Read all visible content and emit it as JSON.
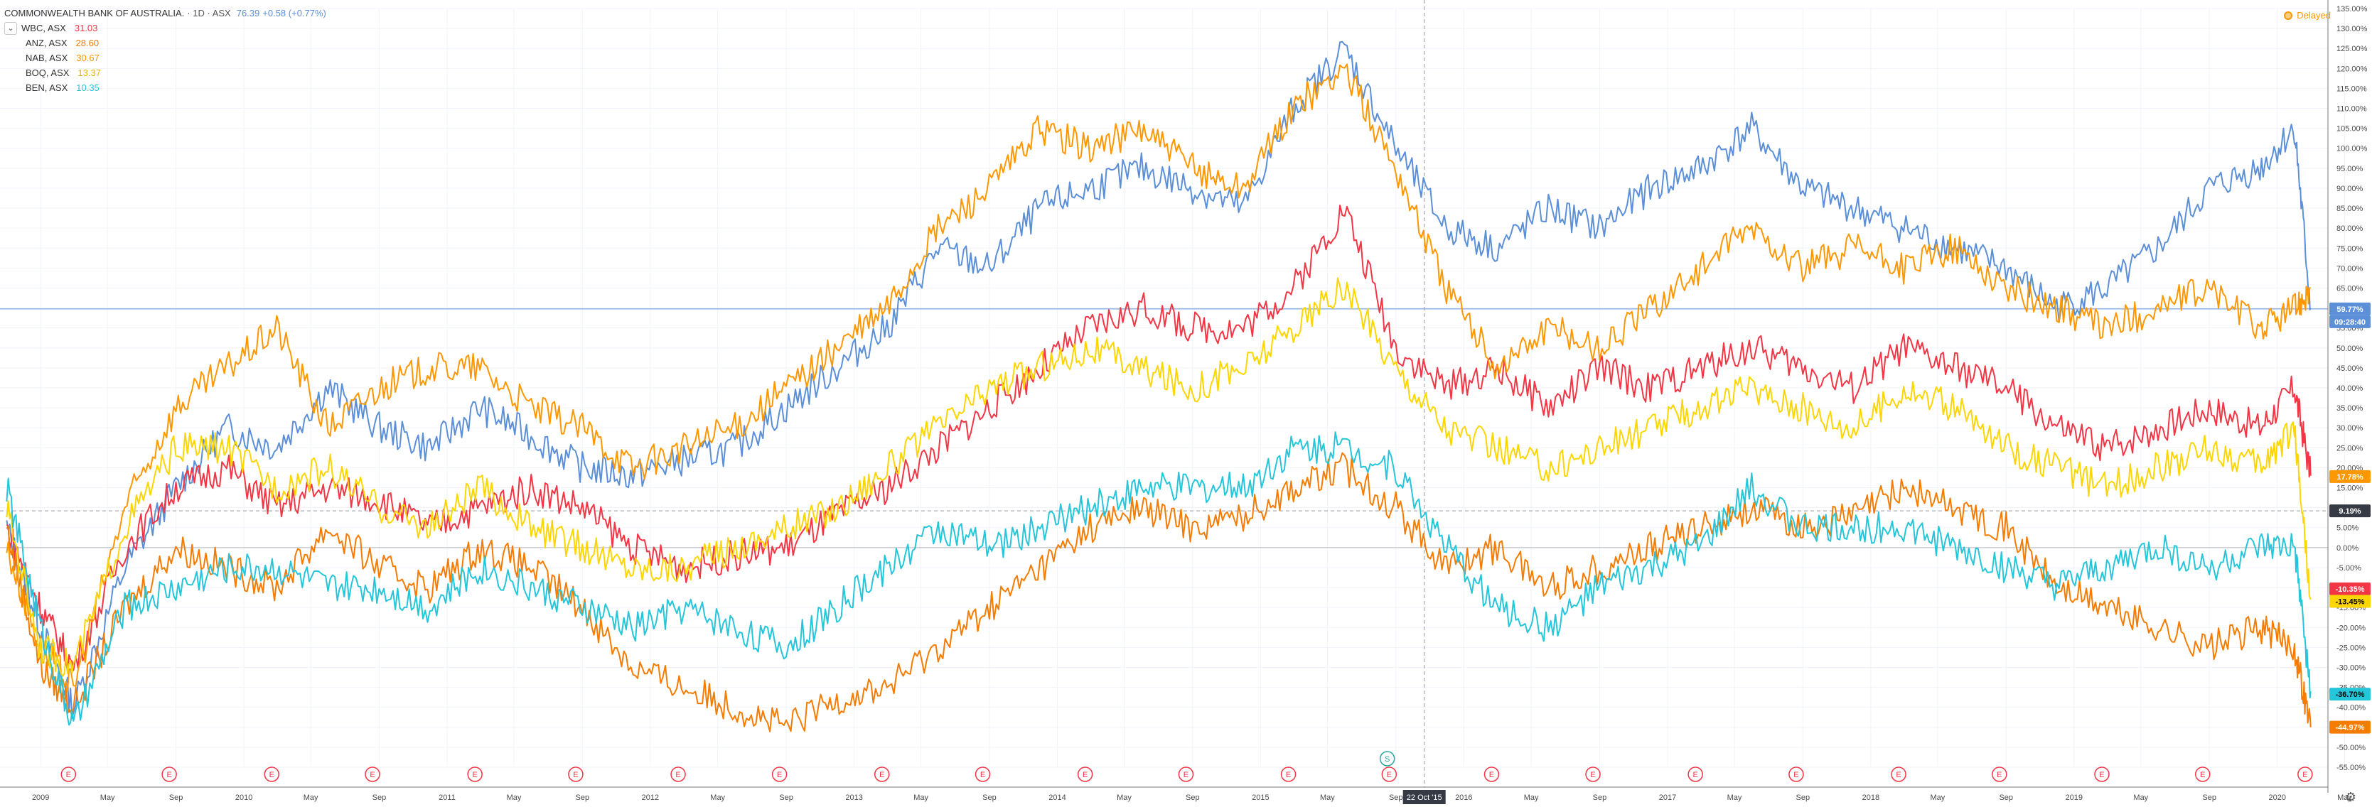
{
  "header": {
    "symbol": "COMMONWEALTH BANK OF AUSTRALIA.",
    "interval": "· 1D · ASX",
    "price": "76.39",
    "change": "+0.58 (+0.77%)",
    "delayed_label": "Delayed",
    "delayed_icon": "clock-icon"
  },
  "legend": [
    {
      "symbol": "WBC, ASX",
      "value": "31.03",
      "color": "#f23645"
    },
    {
      "symbol": "ANZ, ASX",
      "value": "28.60",
      "color": "#f57c00"
    },
    {
      "symbol": "NAB, ASX",
      "value": "30.67",
      "color": "#ff9800"
    },
    {
      "symbol": "BOQ, ASX",
      "value": "13.37",
      "color": "#fdd600"
    },
    {
      "symbol": "BEN, ASX",
      "value": "10.35",
      "color": "#26c6da"
    }
  ],
  "crosshair": {
    "date_label": "22 Oct '15",
    "marker": "S"
  },
  "price_tags": {
    "cba_pct": "59.77%",
    "countdown": "09:28:40",
    "cursor_pct": "9.19%",
    "tag_17": "17.78%",
    "tag_10": "-10.35%",
    "tag_13": "-13.45%",
    "tag_36": "-36.70%",
    "tag_44": "-44.97%"
  },
  "chart_data": {
    "type": "line",
    "y_unit": "%",
    "ylim": [
      -55,
      135
    ],
    "y_ticks": [
      "135.00%",
      "130.00%",
      "125.00%",
      "120.00%",
      "115.00%",
      "110.00%",
      "105.00%",
      "100.00%",
      "95.00%",
      "90.00%",
      "85.00%",
      "80.00%",
      "75.00%",
      "70.00%",
      "65.00%",
      "60.00%",
      "55.00%",
      "50.00%",
      "45.00%",
      "40.00%",
      "35.00%",
      "30.00%",
      "25.00%",
      "20.00%",
      "15.00%",
      "10.00%",
      "5.00%",
      "0.00%",
      "-5.00%",
      "-10.00%",
      "-15.00%",
      "-20.00%",
      "-25.00%",
      "-30.00%",
      "-35.00%",
      "-40.00%",
      "-45.00%",
      "-50.00%",
      "-55.00%"
    ],
    "x_ticks": [
      "2009",
      "May",
      "Sep",
      "2010",
      "May",
      "Sep",
      "2011",
      "May",
      "Sep",
      "2012",
      "May",
      "Sep",
      "2013",
      "May",
      "Sep",
      "2014",
      "May",
      "Sep",
      "2015",
      "May",
      "Sep",
      "2016",
      "May",
      "Sep",
      "2017",
      "May",
      "Sep",
      "2018",
      "May",
      "Sep",
      "2019",
      "May",
      "Sep",
      "2020",
      "May"
    ],
    "x": [
      "2008-11",
      "2009-01",
      "2009-03",
      "2009-06",
      "2009-09",
      "2009-12",
      "2010-03",
      "2010-06",
      "2010-09",
      "2010-12",
      "2011-03",
      "2011-06",
      "2011-09",
      "2011-12",
      "2012-03",
      "2012-06",
      "2012-09",
      "2012-12",
      "2013-03",
      "2013-06",
      "2013-09",
      "2013-12",
      "2014-03",
      "2014-06",
      "2014-09",
      "2014-12",
      "2015-03",
      "2015-06",
      "2015-09",
      "2015-12",
      "2016-03",
      "2016-06",
      "2016-09",
      "2016-12",
      "2017-03",
      "2017-06",
      "2017-09",
      "2017-12",
      "2018-03",
      "2018-06",
      "2018-09",
      "2018-12",
      "2019-03",
      "2019-06",
      "2019-09",
      "2019-12",
      "2020-02",
      "2020-03"
    ],
    "series": [
      {
        "name": "COMMONWEALTH BANK OF AUSTRALIA.",
        "color": "#5b8fd8",
        "values": [
          5,
          -20,
          -40,
          -5,
          15,
          30,
          25,
          40,
          30,
          25,
          35,
          28,
          20,
          18,
          22,
          25,
          35,
          45,
          55,
          75,
          70,
          85,
          90,
          95,
          90,
          85,
          110,
          125,
          100,
          80,
          75,
          85,
          80,
          90,
          95,
          105,
          90,
          85,
          80,
          75,
          70,
          60,
          65,
          75,
          90,
          95,
          105,
          60
        ]
      },
      {
        "name": "WBC, ASX",
        "values": [
          5,
          -15,
          -30,
          0,
          15,
          20,
          10,
          15,
          12,
          5,
          10,
          15,
          10,
          0,
          -5,
          -2,
          0,
          8,
          15,
          25,
          35,
          45,
          55,
          60,
          55,
          55,
          65,
          85,
          50,
          40,
          45,
          35,
          45,
          40,
          45,
          50,
          45,
          40,
          50,
          45,
          40,
          30,
          25,
          30,
          35,
          30,
          40,
          18
        ]
      },
      {
        "name": "ANZ, ASX",
        "values": [
          5,
          -30,
          -40,
          -15,
          0,
          -5,
          -10,
          5,
          -5,
          -10,
          0,
          -5,
          -15,
          -30,
          -35,
          -40,
          -45,
          -38,
          -35,
          -25,
          -15,
          -5,
          5,
          10,
          5,
          8,
          15,
          20,
          10,
          -5,
          0,
          -10,
          -5,
          0,
          5,
          10,
          5,
          8,
          15,
          10,
          5,
          -10,
          -15,
          -20,
          -25,
          -20,
          -25,
          -45
        ]
      },
      {
        "name": "NAB, ASX",
        "values": [
          0,
          -25,
          -35,
          10,
          35,
          45,
          55,
          30,
          40,
          45,
          45,
          35,
          30,
          20,
          25,
          30,
          40,
          50,
          60,
          80,
          90,
          105,
          100,
          105,
          95,
          90,
          110,
          120,
          95,
          65,
          45,
          55,
          50,
          60,
          70,
          80,
          70,
          75,
          70,
          75,
          65,
          60,
          55,
          60,
          65,
          55,
          60,
          65
        ]
      },
      {
        "name": "BOQ, ASX",
        "values": [
          10,
          -25,
          -30,
          5,
          25,
          25,
          15,
          20,
          10,
          5,
          15,
          5,
          0,
          -5,
          -5,
          0,
          5,
          10,
          20,
          30,
          40,
          45,
          50,
          45,
          40,
          45,
          55,
          65,
          45,
          30,
          25,
          20,
          25,
          30,
          35,
          40,
          35,
          30,
          40,
          35,
          25,
          20,
          15,
          20,
          25,
          20,
          30,
          -13
        ]
      },
      {
        "name": "BEN, ASX",
        "values": [
          15,
          -20,
          -45,
          -15,
          -10,
          -5,
          -5,
          -10,
          -10,
          -15,
          -5,
          -10,
          -15,
          -20,
          -15,
          -20,
          -25,
          -15,
          -5,
          5,
          0,
          5,
          10,
          15,
          15,
          15,
          25,
          25,
          20,
          0,
          -15,
          -20,
          -10,
          -5,
          0,
          15,
          5,
          5,
          5,
          0,
          -5,
          -10,
          -5,
          0,
          -5,
          0,
          0,
          -36
        ]
      }
    ],
    "earnings_marker": "E",
    "grid": true
  }
}
